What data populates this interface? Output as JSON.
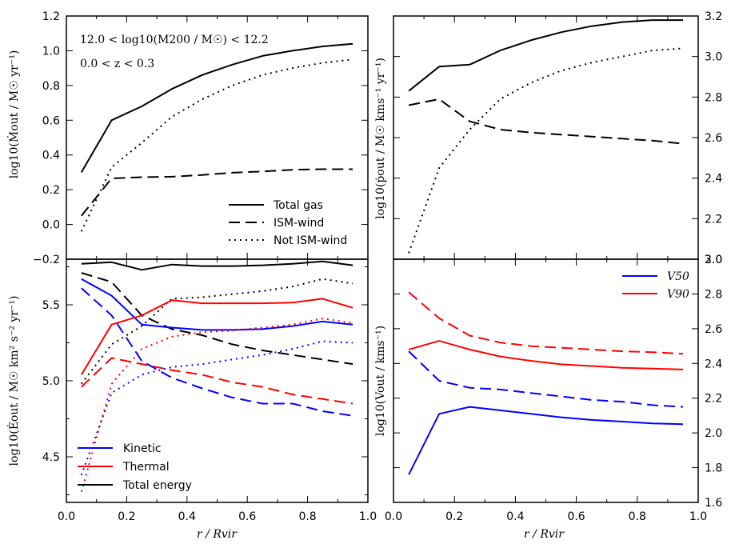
{
  "figure": {
    "annotations": [
      "12.0 < log10(M200 / M☉) < 12.2",
      "0.0 < z < 0.3"
    ],
    "xlabel": "r / Rvir"
  },
  "chart_data": [
    {
      "id": "tl",
      "type": "line",
      "ylabel": "log10(Ṁout / M☉ yr⁻¹)",
      "xlim": [
        0,
        1
      ],
      "ylim": [
        -0.2,
        1.2
      ],
      "xticks": [
        "0.0",
        "0.2",
        "0.4",
        "0.6",
        "0.8",
        "1.0"
      ],
      "yticks": [
        "−0.2",
        "0.0",
        "0.2",
        "0.4",
        "0.6",
        "0.8",
        "1.0",
        "1.2"
      ],
      "legend": [
        "Total gas",
        "ISM-wind",
        "Not ISM-wind"
      ],
      "series": [
        {
          "name": "Total gas",
          "color": "#000000",
          "dash": "solid",
          "x": [
            0.05,
            0.15,
            0.25,
            0.35,
            0.45,
            0.55,
            0.65,
            0.75,
            0.85,
            0.95
          ],
          "y": [
            0.3,
            0.6,
            0.68,
            0.78,
            0.86,
            0.92,
            0.97,
            1.0,
            1.025,
            1.04
          ]
        },
        {
          "name": "ISM-wind",
          "color": "#000000",
          "dash": "dashed",
          "x": [
            0.05,
            0.15,
            0.25,
            0.35,
            0.45,
            0.55,
            0.65,
            0.75,
            0.85,
            0.95
          ],
          "y": [
            0.05,
            0.265,
            0.272,
            0.275,
            0.285,
            0.298,
            0.305,
            0.315,
            0.318,
            0.318
          ]
        },
        {
          "name": "Not ISM-wind",
          "color": "#000000",
          "dash": "dotted",
          "x": [
            0.05,
            0.15,
            0.25,
            0.35,
            0.45,
            0.55,
            0.65,
            0.75,
            0.85,
            0.95
          ],
          "y": [
            -0.04,
            0.33,
            0.47,
            0.62,
            0.72,
            0.8,
            0.86,
            0.9,
            0.93,
            0.95
          ]
        }
      ]
    },
    {
      "id": "tr",
      "type": "line",
      "ylabel": "log10(ṗout / M☉ kms⁻¹ yr⁻¹)",
      "xlim": [
        0,
        1
      ],
      "ylim": [
        2.0,
        3.2
      ],
      "xticks": [
        "0.0",
        "0.2",
        "0.4",
        "0.6",
        "0.8",
        "1.0"
      ],
      "yticks": [
        "2.0",
        "2.2",
        "2.4",
        "2.6",
        "2.8",
        "3.0",
        "3.2"
      ],
      "series": [
        {
          "name": "Total gas",
          "color": "#000000",
          "dash": "solid",
          "x": [
            0.05,
            0.15,
            0.25,
            0.35,
            0.45,
            0.55,
            0.65,
            0.75,
            0.85,
            0.95
          ],
          "y": [
            2.83,
            2.95,
            2.96,
            3.03,
            3.08,
            3.12,
            3.15,
            3.17,
            3.18,
            3.18
          ]
        },
        {
          "name": "ISM-wind",
          "color": "#000000",
          "dash": "dashed",
          "x": [
            0.05,
            0.15,
            0.25,
            0.35,
            0.45,
            0.55,
            0.65,
            0.75,
            0.85,
            0.95
          ],
          "y": [
            2.76,
            2.79,
            2.68,
            2.64,
            2.625,
            2.615,
            2.605,
            2.595,
            2.585,
            2.57
          ]
        },
        {
          "name": "Not ISM-wind",
          "color": "#000000",
          "dash": "dotted",
          "x": [
            0.05,
            0.15,
            0.25,
            0.35,
            0.45,
            0.55,
            0.65,
            0.75,
            0.85,
            0.95
          ],
          "y": [
            2.03,
            2.45,
            2.64,
            2.79,
            2.87,
            2.93,
            2.97,
            3.0,
            3.03,
            3.04
          ]
        }
      ]
    },
    {
      "id": "bl",
      "type": "line",
      "ylabel": "log10(Ėout / M☉ km² s⁻² yr⁻¹)",
      "xlim": [
        0,
        1
      ],
      "ylim": [
        4.2,
        5.8
      ],
      "xticks": [
        "0.0",
        "0.2",
        "0.4",
        "0.6",
        "0.8",
        "1.0"
      ],
      "yticks": [
        "4.5",
        "5.0",
        "5.5"
      ],
      "legend": [
        "Kinetic",
        "Thermal",
        "Total energy"
      ],
      "series": [
        {
          "name": "Total energy",
          "color": "#000000",
          "dash": "solid",
          "x": [
            0.05,
            0.15,
            0.25,
            0.35,
            0.45,
            0.55,
            0.65,
            0.75,
            0.85,
            0.95
          ],
          "y": [
            5.77,
            5.78,
            5.73,
            5.765,
            5.755,
            5.755,
            5.76,
            5.77,
            5.785,
            5.76
          ]
        },
        {
          "name": "Total energy ISM-wind",
          "color": "#000000",
          "dash": "dashed",
          "x": [
            0.05,
            0.15,
            0.25,
            0.35,
            0.45,
            0.55,
            0.65,
            0.75,
            0.85,
            0.95
          ],
          "y": [
            5.71,
            5.65,
            5.43,
            5.34,
            5.3,
            5.24,
            5.2,
            5.17,
            5.14,
            5.11
          ]
        },
        {
          "name": "Total energy Not ISM-wind",
          "color": "#000000",
          "dash": "dotted",
          "x": [
            0.05,
            0.15,
            0.25,
            0.35,
            0.45,
            0.55,
            0.65,
            0.75,
            0.85,
            0.95
          ],
          "y": [
            4.98,
            5.24,
            5.36,
            5.54,
            5.55,
            5.57,
            5.59,
            5.62,
            5.67,
            5.64
          ]
        },
        {
          "name": "Kinetic",
          "color": "#0000ff",
          "dash": "solid",
          "x": [
            0.05,
            0.15,
            0.25,
            0.35,
            0.45,
            0.55,
            0.65,
            0.75,
            0.85,
            0.95
          ],
          "y": [
            5.67,
            5.56,
            5.37,
            5.35,
            5.335,
            5.335,
            5.34,
            5.36,
            5.39,
            5.37
          ]
        },
        {
          "name": "Kinetic ISM-wind",
          "color": "#0000ff",
          "dash": "dashed",
          "x": [
            0.05,
            0.15,
            0.25,
            0.35,
            0.45,
            0.55,
            0.65,
            0.75,
            0.85,
            0.95
          ],
          "y": [
            5.61,
            5.43,
            5.13,
            5.02,
            4.95,
            4.89,
            4.85,
            4.85,
            4.8,
            4.77
          ]
        },
        {
          "name": "Kinetic Not ISM-wind",
          "color": "#0000ff",
          "dash": "dotted",
          "x": [
            0.05,
            0.15,
            0.25,
            0.35,
            0.45,
            0.55,
            0.65,
            0.75,
            0.85,
            0.95
          ],
          "y": [
            4.38,
            4.92,
            5.04,
            5.09,
            5.11,
            5.14,
            5.17,
            5.21,
            5.26,
            5.25
          ]
        },
        {
          "name": "Thermal",
          "color": "#ff0000",
          "dash": "solid",
          "x": [
            0.05,
            0.15,
            0.25,
            0.35,
            0.45,
            0.55,
            0.65,
            0.75,
            0.85,
            0.95
          ],
          "y": [
            5.04,
            5.37,
            5.43,
            5.53,
            5.51,
            5.51,
            5.51,
            5.515,
            5.54,
            5.48
          ]
        },
        {
          "name": "Thermal ISM-wind",
          "color": "#ff0000",
          "dash": "dashed",
          "x": [
            0.05,
            0.15,
            0.25,
            0.35,
            0.45,
            0.55,
            0.65,
            0.75,
            0.85,
            0.95
          ],
          "y": [
            4.96,
            5.15,
            5.11,
            5.07,
            5.04,
            4.99,
            4.96,
            4.91,
            4.88,
            4.85
          ]
        },
        {
          "name": "Thermal Not ISM-wind",
          "color": "#ff0000",
          "dash": "dotted",
          "x": [
            0.05,
            0.15,
            0.25,
            0.35,
            0.45,
            0.55,
            0.65,
            0.75,
            0.85,
            0.95
          ],
          "y": [
            4.27,
            4.98,
            5.21,
            5.29,
            5.32,
            5.33,
            5.35,
            5.37,
            5.41,
            5.38
          ]
        }
      ]
    },
    {
      "id": "br",
      "type": "line",
      "ylabel": "log10(Vout / kms⁻¹)",
      "xlim": [
        0,
        1
      ],
      "ylim": [
        1.6,
        3.0
      ],
      "xticks": [
        "0.0",
        "0.2",
        "0.4",
        "0.6",
        "0.8",
        "1.0"
      ],
      "yticks": [
        "1.6",
        "1.8",
        "2.0",
        "2.2",
        "2.4",
        "2.6",
        "2.8",
        "3.0"
      ],
      "legend": [
        "V50",
        "V90"
      ],
      "series": [
        {
          "name": "V50",
          "color": "#0000ff",
          "dash": "solid",
          "x": [
            0.05,
            0.15,
            0.25,
            0.35,
            0.45,
            0.55,
            0.65,
            0.75,
            0.85,
            0.95
          ],
          "y": [
            1.76,
            2.11,
            2.15,
            2.13,
            2.11,
            2.09,
            2.075,
            2.065,
            2.055,
            2.05
          ]
        },
        {
          "name": "V50 ISM-wind",
          "color": "#0000ff",
          "dash": "dashed",
          "x": [
            0.05,
            0.15,
            0.25,
            0.35,
            0.45,
            0.55,
            0.65,
            0.75,
            0.85,
            0.95
          ],
          "y": [
            2.47,
            2.3,
            2.26,
            2.25,
            2.23,
            2.21,
            2.19,
            2.18,
            2.16,
            2.15
          ]
        },
        {
          "name": "V90",
          "color": "#ff0000",
          "dash": "solid",
          "x": [
            0.05,
            0.15,
            0.25,
            0.35,
            0.45,
            0.55,
            0.65,
            0.75,
            0.85,
            0.95
          ],
          "y": [
            2.48,
            2.53,
            2.48,
            2.44,
            2.415,
            2.395,
            2.385,
            2.375,
            2.37,
            2.365
          ]
        },
        {
          "name": "V90 ISM-wind",
          "color": "#ff0000",
          "dash": "dashed",
          "x": [
            0.05,
            0.15,
            0.25,
            0.35,
            0.45,
            0.55,
            0.65,
            0.75,
            0.85,
            0.95
          ],
          "y": [
            2.81,
            2.66,
            2.56,
            2.52,
            2.5,
            2.49,
            2.48,
            2.47,
            2.465,
            2.455
          ]
        }
      ]
    }
  ]
}
